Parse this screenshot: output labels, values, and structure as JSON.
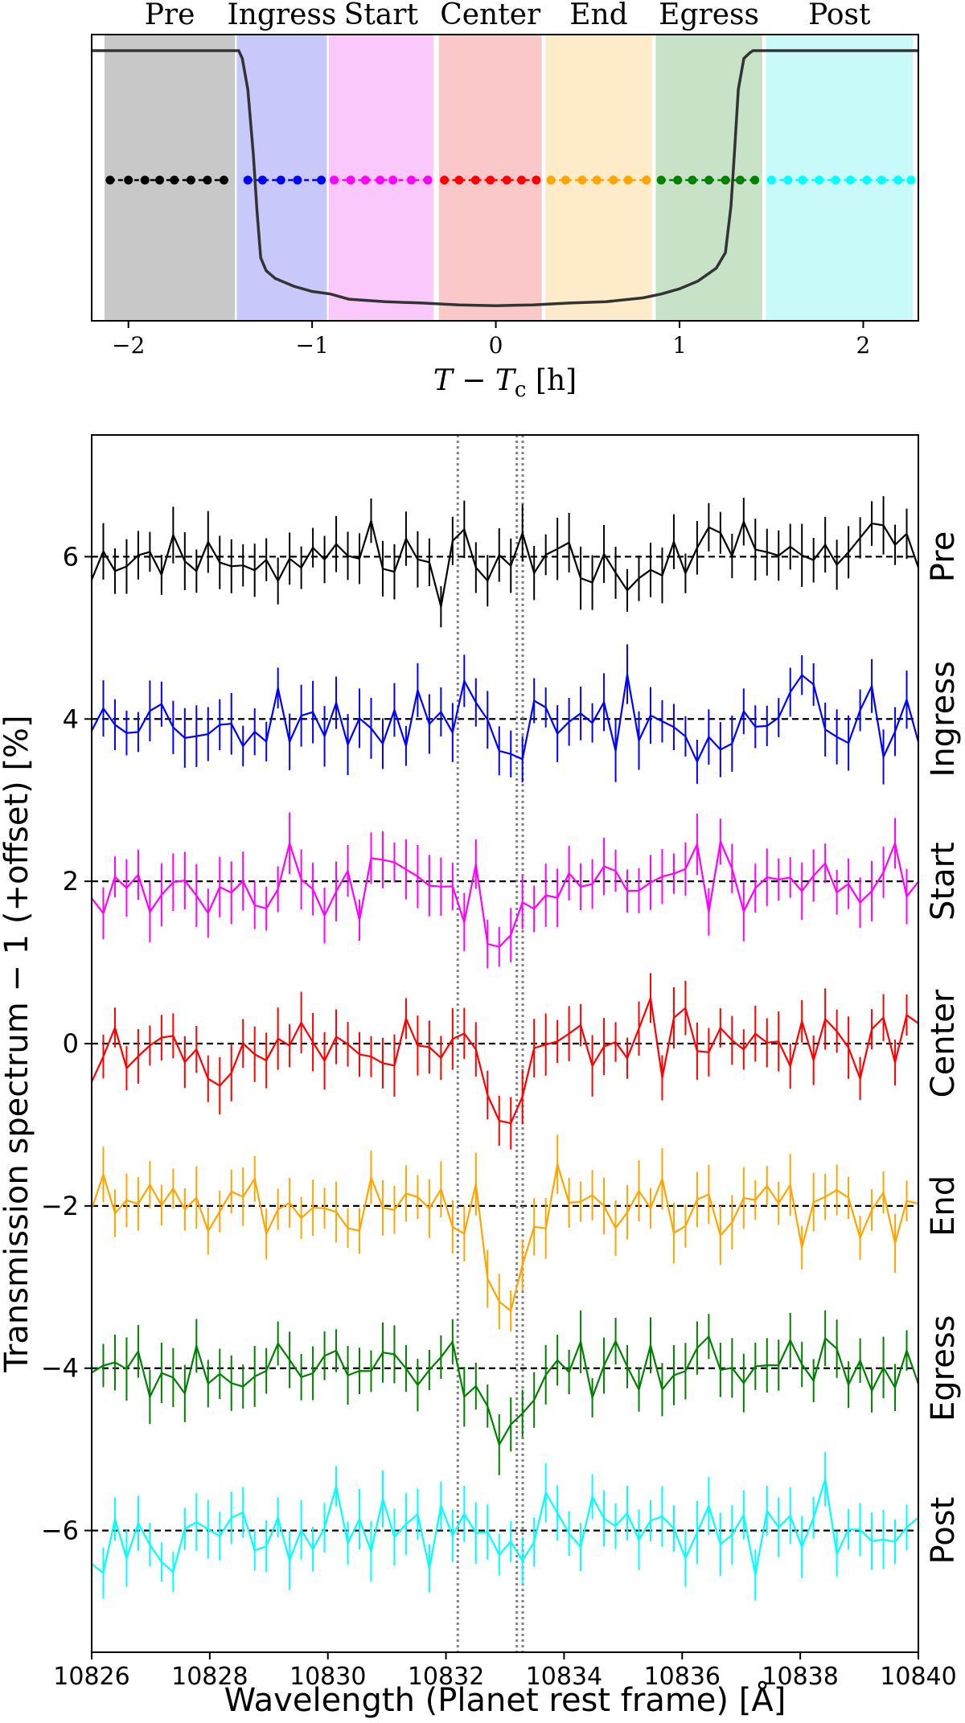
{
  "chart_data": [
    {
      "type": "line",
      "panel": "light-curve",
      "xlabel": "T − T",
      "xlabel_sub": "c",
      "xlabel_unit": " [h]",
      "xlim": [
        -2.2,
        2.3
      ],
      "xticks": [
        -2,
        -1,
        0,
        1,
        2
      ],
      "xtick_labels": [
        "−2",
        "−1",
        "0",
        "1",
        "2"
      ],
      "phases": [
        {
          "name": "Pre",
          "start": -2.13,
          "end": -1.42,
          "color": "#c8c8c8"
        },
        {
          "name": "Ingress",
          "start": -1.41,
          "end": -0.92,
          "color": "#c8c8fa"
        },
        {
          "name": "Start",
          "start": -0.91,
          "end": -0.34,
          "color": "#fac8fa"
        },
        {
          "name": "Center",
          "start": -0.31,
          "end": 0.25,
          "color": "#fac8c8"
        },
        {
          "name": "End",
          "start": 0.27,
          "end": 0.85,
          "color": "#fdebc9"
        },
        {
          "name": "Egress",
          "start": 0.87,
          "end": 1.45,
          "color": "#c8e2c8"
        },
        {
          "name": "Post",
          "start": 1.47,
          "end": 2.27,
          "color": "#c8fafa"
        }
      ],
      "exposure_dots": {
        "y": 0.5,
        "groups": [
          {
            "color": "#000000",
            "x": [
              -2.1,
              -2.0,
              -1.91,
              -1.83,
              -1.75,
              -1.66,
              -1.57,
              -1.48
            ]
          },
          {
            "color": "#0000ff",
            "x": [
              -1.35,
              -1.27,
              -1.17,
              -1.08,
              -0.95
            ]
          },
          {
            "color": "#ff00ff",
            "x": [
              -0.88,
              -0.79,
              -0.71,
              -0.63,
              -0.56,
              -0.46,
              -0.37
            ]
          },
          {
            "color": "#ff0000",
            "x": [
              -0.28,
              -0.2,
              -0.11,
              -0.03,
              0.06,
              0.14,
              0.22
            ]
          },
          {
            "color": "#ffa500",
            "x": [
              0.3,
              0.38,
              0.47,
              0.55,
              0.64,
              0.72,
              0.82
            ]
          },
          {
            "color": "#008000",
            "x": [
              0.9,
              0.99,
              1.07,
              1.16,
              1.25,
              1.33,
              1.41
            ]
          },
          {
            "color": "#00ffff",
            "x": [
              1.5,
              1.59,
              1.67,
              1.76,
              1.85,
              1.93,
              2.02,
              2.1,
              2.19,
              2.26
            ]
          }
        ]
      },
      "transit_curve": {
        "x": [
          -2.2,
          -1.4,
          -1.38,
          -1.35,
          -1.32,
          -1.3,
          -1.28,
          -1.25,
          -1.2,
          -1.1,
          -1.0,
          -0.9,
          -0.8,
          -0.6,
          -0.4,
          -0.2,
          0.0,
          0.2,
          0.4,
          0.6,
          0.8,
          0.9,
          1.0,
          1.1,
          1.2,
          1.25,
          1.28,
          1.3,
          1.32,
          1.35,
          1.38,
          1.4,
          2.3
        ],
        "y": [
          1.0,
          1.0,
          0.97,
          0.85,
          0.6,
          0.38,
          0.2,
          0.15,
          0.12,
          0.09,
          0.07,
          0.06,
          0.04,
          0.03,
          0.025,
          0.018,
          0.015,
          0.018,
          0.025,
          0.03,
          0.045,
          0.06,
          0.08,
          0.11,
          0.16,
          0.22,
          0.4,
          0.62,
          0.85,
          0.97,
          0.99,
          1.0,
          1.0
        ]
      }
    },
    {
      "type": "line",
      "panel": "transmission-spectra",
      "xlabel": "Wavelength (Planet rest frame) [Å]",
      "ylabel": "Transmission spectrum − 1 (+offset) [%]",
      "xlim": [
        10826,
        10840
      ],
      "ylim": [
        -7.5,
        7.5
      ],
      "xticks": [
        10826,
        10828,
        10830,
        10832,
        10834,
        10836,
        10838,
        10840
      ],
      "xtick_labels": [
        "10826",
        "10828",
        "10830",
        "10832",
        "10834",
        "10836",
        "10838",
        "10840"
      ],
      "yticks": [
        6,
        4,
        2,
        0,
        -2,
        -4,
        -6
      ],
      "ytick_labels": [
        "6",
        "4",
        "2",
        "0",
        "−2",
        "−4",
        "−6"
      ],
      "vlines": [
        10832.2,
        10833.2,
        10833.3
      ],
      "error": 0.3,
      "series": [
        {
          "name": "Pre",
          "offset": 6,
          "color": "#000000",
          "dip": 0.0,
          "seed": 11
        },
        {
          "name": "Ingress",
          "offset": 4,
          "color": "#0000ff",
          "dip": 0.35,
          "seed": 23
        },
        {
          "name": "Start",
          "offset": 2,
          "color": "#ff00ff",
          "dip": 0.85,
          "seed": 37
        },
        {
          "name": "Center",
          "offset": 0,
          "color": "#ff0000",
          "dip": 1.2,
          "seed": 53
        },
        {
          "name": "End",
          "offset": -2,
          "color": "#ffa500",
          "dip": 1.3,
          "seed": 71
        },
        {
          "name": "Egress",
          "offset": -4,
          "color": "#008000",
          "dip": 0.9,
          "seed": 89
        },
        {
          "name": "Post",
          "offset": -6,
          "color": "#00ffff",
          "dip": 0.3,
          "seed": 97
        }
      ]
    }
  ]
}
